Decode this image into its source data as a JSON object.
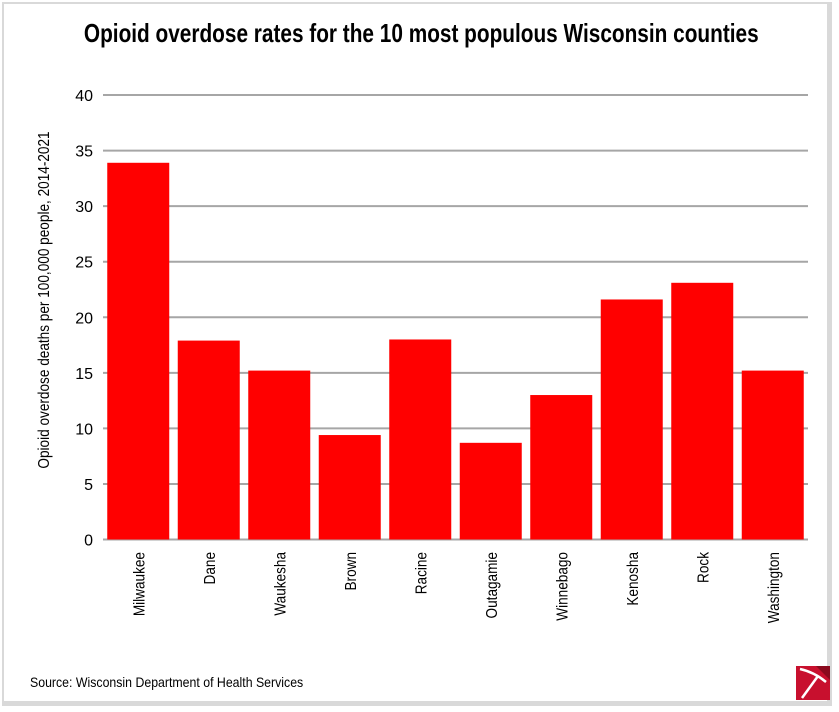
{
  "chart_data": {
    "type": "bar",
    "title": "Opioid overdose rates for the 10 most populous Wisconsin counties",
    "xlabel": "",
    "ylabel": "Opioid overdose deaths per 100,000 people, 2014-2021",
    "categories": [
      "Milwaukee",
      "Dane",
      "Waukesha",
      "Brown",
      "Racine",
      "Outagamie",
      "Winnebago",
      "Kenosha",
      "Rock",
      "Washington"
    ],
    "values": [
      33.9,
      17.9,
      15.2,
      9.4,
      18.0,
      8.7,
      13.0,
      21.6,
      23.1,
      15.2
    ],
    "ylim": [
      0,
      40
    ],
    "yticks": [
      0,
      5,
      10,
      15,
      20,
      25,
      30,
      35,
      40
    ],
    "grid": true,
    "bar_color": "#ff0000",
    "gridline_color": "#a6a6a6"
  },
  "source": "Source: Wisconsin Department of Health Services",
  "logo": {
    "icon": "pickaxe-logo-icon",
    "color": "#c8102e"
  }
}
